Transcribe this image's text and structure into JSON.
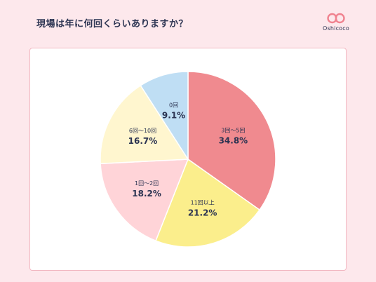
{
  "title": "現場は年に何回くらいありますか？",
  "logo": {
    "name": "Oshicoco",
    "icon": "oshicoco-logo-icon",
    "color": "#f0828f"
  },
  "chart_data": {
    "type": "pie",
    "title": "現場は年に何回くらいありますか？",
    "start": "12 o'clock, clockwise",
    "slices": [
      {
        "label": "3回〜5回",
        "value": 34.8,
        "value_label": "34.8%",
        "color": "#f08a8f"
      },
      {
        "label": "11回以上",
        "value": 21.2,
        "value_label": "21.2%",
        "color": "#fbee8c"
      },
      {
        "label": "1回〜2回",
        "value": 18.2,
        "value_label": "18.2%",
        "color": "#ffd4d8"
      },
      {
        "label": "6回〜10回",
        "value": 16.7,
        "value_label": "16.7%",
        "color": "#fff6cf"
      },
      {
        "label": "0回",
        "value": 9.1,
        "value_label": "9.1%",
        "color": "#bfdef4"
      }
    ],
    "stroke_color": "#ffffff"
  }
}
